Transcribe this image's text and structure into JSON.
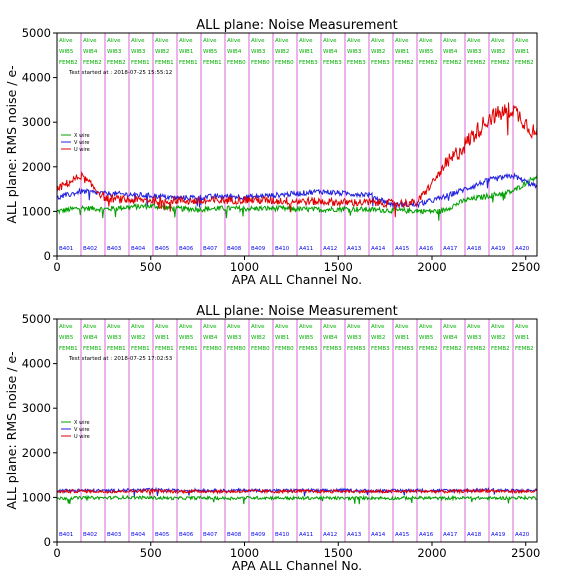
{
  "colors": {
    "x": "#00a000",
    "v": "#2020e0",
    "u": "#e00000",
    "divider": "#d040d0",
    "status": "#00b000",
    "board": "#0000ee"
  },
  "chart_data": [
    {
      "type": "line",
      "title": "ALL plane: Noise Measurement",
      "xlabel": "APA ALL Channel No.",
      "ylabel": "ALL plane: RMS noise / e-",
      "xlim": [
        0,
        2560
      ],
      "ylim": [
        0,
        5000
      ],
      "xticks": [
        0,
        500,
        1000,
        1500,
        2000,
        2500
      ],
      "yticks": [
        0,
        1000,
        2000,
        3000,
        4000,
        5000
      ],
      "test_started": "Test started at : 2018-07-25 15:55:12",
      "legend": [
        "X wire",
        "V wire",
        "U wire"
      ],
      "legend_position": "left",
      "boards": [
        {
          "name": "B401",
          "status": "Alive",
          "wib": "WIB5",
          "femb": "FEMB2"
        },
        {
          "name": "B402",
          "status": "Alive",
          "wib": "WIB4",
          "femb": "FEMB2"
        },
        {
          "name": "B403",
          "status": "Alive",
          "wib": "WIB3",
          "femb": "FEMB2"
        },
        {
          "name": "B404",
          "status": "Alive",
          "wib": "WIB3",
          "femb": "FEMB1"
        },
        {
          "name": "B405",
          "status": "Alive",
          "wib": "WIB2",
          "femb": "FEMB1"
        },
        {
          "name": "B406",
          "status": "Alive",
          "wib": "WIB1",
          "femb": "FEMB1"
        },
        {
          "name": "B407",
          "status": "Alive",
          "wib": "WIB5",
          "femb": "FEMB1"
        },
        {
          "name": "B408",
          "status": "Alive",
          "wib": "WIB4",
          "femb": "FEMB0"
        },
        {
          "name": "B409",
          "status": "Alive",
          "wib": "WIB3",
          "femb": "FEMB0"
        },
        {
          "name": "B410",
          "status": "Alive",
          "wib": "WIB2",
          "femb": "FEMB0"
        },
        {
          "name": "A411",
          "status": "Alive",
          "wib": "WIB1",
          "femb": "FEMB3"
        },
        {
          "name": "A412",
          "status": "Alive",
          "wib": "WIB4",
          "femb": "FEMB3"
        },
        {
          "name": "A413",
          "status": "Alive",
          "wib": "WIB3",
          "femb": "FEMB3"
        },
        {
          "name": "A414",
          "status": "Alive",
          "wib": "WIB2",
          "femb": "FEMB3"
        },
        {
          "name": "A415",
          "status": "Alive",
          "wib": "WIB1",
          "femb": "FEMB2"
        },
        {
          "name": "A416",
          "status": "Alive",
          "wib": "WIB5",
          "femb": "FEMB2"
        },
        {
          "name": "A417",
          "status": "Alive",
          "wib": "WIB4",
          "femb": "FEMB2"
        },
        {
          "name": "A418",
          "status": "Alive",
          "wib": "WIB3",
          "femb": "FEMB2"
        },
        {
          "name": "A419",
          "status": "Alive",
          "wib": "WIB2",
          "femb": "FEMB2"
        },
        {
          "name": "A420",
          "status": "Alive",
          "wib": "WIB1",
          "femb": "FEMB2"
        }
      ],
      "series": [
        {
          "name": "X wire",
          "x": [
            0,
            128,
            256,
            384,
            512,
            640,
            768,
            896,
            1024,
            1152,
            1280,
            1408,
            1536,
            1664,
            1792,
            1920,
            2048,
            2176,
            2304,
            2432,
            2560
          ],
          "y": [
            1000,
            1080,
            1050,
            1100,
            1120,
            1060,
            1050,
            1070,
            1060,
            1070,
            1050,
            1040,
            1060,
            1040,
            1020,
            1010,
            1000,
            1250,
            1350,
            1450,
            1800
          ]
        },
        {
          "name": "V wire",
          "x": [
            0,
            128,
            256,
            384,
            512,
            640,
            768,
            896,
            1024,
            1152,
            1280,
            1408,
            1536,
            1664,
            1792,
            1920,
            2048,
            2176,
            2304,
            2432,
            2560
          ],
          "y": [
            1300,
            1450,
            1400,
            1380,
            1350,
            1300,
            1320,
            1340,
            1320,
            1360,
            1400,
            1450,
            1400,
            1380,
            1150,
            1150,
            1300,
            1500,
            1700,
            1800,
            1550
          ]
        },
        {
          "name": "U wire",
          "x": [
            0,
            128,
            256,
            384,
            512,
            640,
            768,
            896,
            1024,
            1152,
            1280,
            1408,
            1536,
            1664,
            1792,
            1920,
            2048,
            2176,
            2304,
            2432,
            2560
          ],
          "y": [
            1500,
            1800,
            1300,
            1250,
            1250,
            1250,
            1220,
            1250,
            1260,
            1240,
            1230,
            1220,
            1200,
            1200,
            1180,
            1190,
            1900,
            2500,
            3100,
            3300,
            2700
          ]
        }
      ]
    },
    {
      "type": "line",
      "title": "ALL plane: Noise Measurement",
      "xlabel": "APA ALL Channel No.",
      "ylabel": "ALL plane: RMS noise / e-",
      "xlim": [
        0,
        2560
      ],
      "ylim": [
        0,
        5000
      ],
      "xticks": [
        0,
        500,
        1000,
        1500,
        2000,
        2500
      ],
      "yticks": [
        0,
        1000,
        2000,
        3000,
        4000,
        5000
      ],
      "test_started": "Test started at : 2018-07-25 17:02:53",
      "legend": [
        "X wire",
        "V wire",
        "U wire"
      ],
      "legend_position": "left",
      "boards": [
        {
          "name": "B401",
          "status": "Alive",
          "wib": "WIB5",
          "femb": "FEMB1"
        },
        {
          "name": "B402",
          "status": "Alive",
          "wib": "WIB4",
          "femb": "FEMB1"
        },
        {
          "name": "B403",
          "status": "Alive",
          "wib": "WIB3",
          "femb": "FEMB1"
        },
        {
          "name": "B404",
          "status": "Alive",
          "wib": "WIB2",
          "femb": "FEMB1"
        },
        {
          "name": "B405",
          "status": "Alive",
          "wib": "WIB1",
          "femb": "FEMB1"
        },
        {
          "name": "B406",
          "status": "Alive",
          "wib": "WIB5",
          "femb": "FEMB1"
        },
        {
          "name": "B407",
          "status": "Alive",
          "wib": "WIB4",
          "femb": "FEMB0"
        },
        {
          "name": "B408",
          "status": "Alive",
          "wib": "WIB3",
          "femb": "FEMB0"
        },
        {
          "name": "B409",
          "status": "Alive",
          "wib": "WIB2",
          "femb": "FEMB0"
        },
        {
          "name": "B410",
          "status": "Alive",
          "wib": "WIB1",
          "femb": "FEMB0"
        },
        {
          "name": "A411",
          "status": "Alive",
          "wib": "WIB5",
          "femb": "FEMB3"
        },
        {
          "name": "A412",
          "status": "Alive",
          "wib": "WIB4",
          "femb": "FEMB3"
        },
        {
          "name": "A413",
          "status": "Alive",
          "wib": "WIB3",
          "femb": "FEMB3"
        },
        {
          "name": "A414",
          "status": "Alive",
          "wib": "WIB2",
          "femb": "FEMB3"
        },
        {
          "name": "A415",
          "status": "Alive",
          "wib": "WIB1",
          "femb": "FEMB3"
        },
        {
          "name": "A416",
          "status": "Alive",
          "wib": "WIB5",
          "femb": "FEMB2"
        },
        {
          "name": "A417",
          "status": "Alive",
          "wib": "WIB4",
          "femb": "FEMB2"
        },
        {
          "name": "A418",
          "status": "Alive",
          "wib": "WIB3",
          "femb": "FEMB2"
        },
        {
          "name": "A419",
          "status": "Alive",
          "wib": "WIB2",
          "femb": "FEMB2"
        },
        {
          "name": "A420",
          "status": "Alive",
          "wib": "WIB1",
          "femb": "FEMB2"
        }
      ],
      "series": [
        {
          "name": "X wire",
          "x": [
            0,
            128,
            256,
            384,
            512,
            640,
            768,
            896,
            1024,
            1152,
            1280,
            1408,
            1536,
            1664,
            1792,
            1920,
            2048,
            2176,
            2304,
            2432,
            2560
          ],
          "y": [
            980,
            990,
            990,
            1000,
            990,
            980,
            990,
            980,
            990,
            990,
            980,
            990,
            980,
            990,
            980,
            990,
            980,
            990,
            980,
            990,
            990
          ]
        },
        {
          "name": "V wire",
          "x": [
            0,
            128,
            256,
            384,
            512,
            640,
            768,
            896,
            1024,
            1152,
            1280,
            1408,
            1536,
            1664,
            1792,
            1920,
            2048,
            2176,
            2304,
            2432,
            2560
          ],
          "y": [
            1150,
            1160,
            1150,
            1160,
            1170,
            1150,
            1160,
            1150,
            1160,
            1150,
            1160,
            1150,
            1160,
            1150,
            1150,
            1160,
            1150,
            1160,
            1170,
            1150,
            1160
          ]
        },
        {
          "name": "U wire",
          "x": [
            0,
            128,
            256,
            384,
            512,
            640,
            768,
            896,
            1024,
            1152,
            1280,
            1408,
            1536,
            1664,
            1792,
            1920,
            2048,
            2176,
            2304,
            2432,
            2560
          ],
          "y": [
            1130,
            1140,
            1130,
            1140,
            1150,
            1130,
            1140,
            1130,
            1140,
            1130,
            1140,
            1130,
            1140,
            1130,
            1130,
            1140,
            1130,
            1140,
            1150,
            1130,
            1140
          ]
        }
      ]
    }
  ]
}
